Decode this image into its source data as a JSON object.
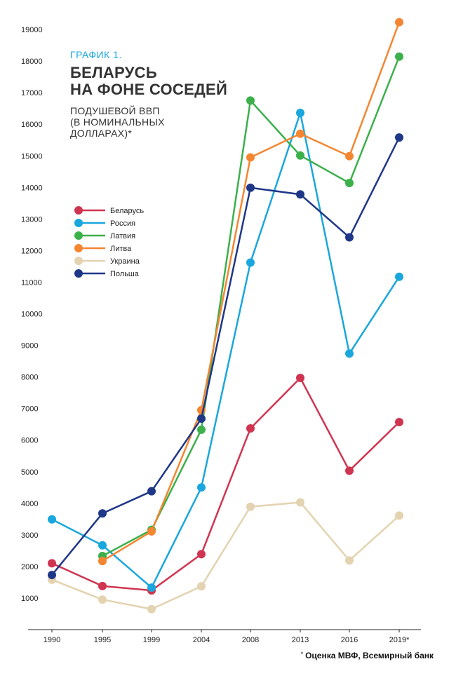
{
  "header": {
    "label": "ГРАФИК 1.",
    "title": "БЕЛАРУСЬ\nНА ФОНЕ СОСЕДЕЙ",
    "subtitle": "ПОДУШЕВОЙ ВВП\n(В НОМИНАЛЬНЫХ\nДОЛЛАРАХ)*"
  },
  "footnote": {
    "mark": "*",
    "text": "Оценка МВФ, Всемирный банк"
  },
  "colors": {
    "Беларусь": "#cf3550",
    "Россия": "#1aa7dd",
    "Латвия": "#3cb04b",
    "Литва": "#f48632",
    "Украина": "#e3d3b0",
    "Польша": "#1f3787"
  },
  "chart_data": {
    "type": "line",
    "x": [
      "1990",
      "1995",
      "1999",
      "2004",
      "2008",
      "2013",
      "2016",
      "2019*"
    ],
    "yticks": [
      1000,
      2000,
      3000,
      4000,
      5000,
      6000,
      7000,
      8000,
      9000,
      10000,
      11000,
      12000,
      13000,
      14000,
      15000,
      16000,
      17000,
      18000,
      19000
    ],
    "ylim": [
      0,
      19500
    ],
    "grid": false,
    "legend_position": "upper-left",
    "series": [
      {
        "name": "Беларусь",
        "values": [
          2100,
          1380,
          1240,
          2390,
          6370,
          7970,
          5030,
          6570
        ]
      },
      {
        "name": "Россия",
        "values": [
          3490,
          2670,
          1330,
          4500,
          11620,
          16360,
          8740,
          11170
        ]
      },
      {
        "name": "Латвия",
        "values": [
          null,
          2330,
          3160,
          6330,
          16750,
          15010,
          14140,
          18140
        ]
      },
      {
        "name": "Литва",
        "values": [
          null,
          2170,
          3110,
          6950,
          14950,
          15700,
          14990,
          19230
        ]
      },
      {
        "name": "Украина",
        "values": [
          1580,
          950,
          650,
          1370,
          3890,
          4030,
          2190,
          3610
        ]
      },
      {
        "name": "Польша",
        "values": [
          1730,
          3680,
          4380,
          6680,
          13990,
          13780,
          12420,
          15580
        ]
      }
    ]
  }
}
